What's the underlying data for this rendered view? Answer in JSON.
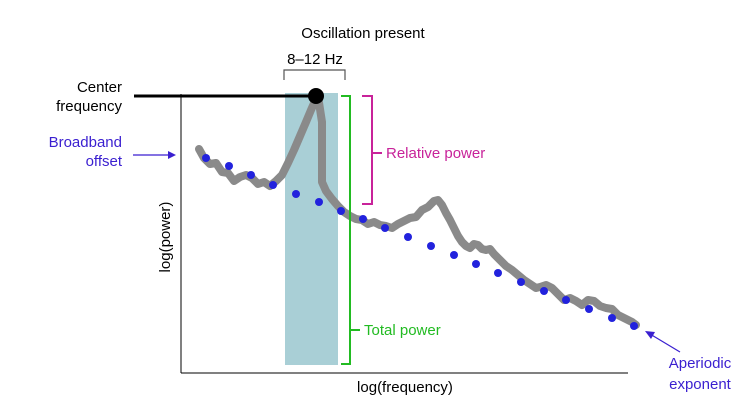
{
  "diagram": {
    "title": "Oscillation present",
    "band_label": "8–12 Hz",
    "center_frequency_label": [
      "Center",
      "frequency"
    ],
    "broadband_offset_label": [
      "Broadband",
      "offset"
    ],
    "relative_power_label": "Relative power",
    "total_power_label": "Total power",
    "aperiodic_exponent_label": [
      "Aperiodic",
      "exponent"
    ],
    "x_axis_label": "log(frequency)",
    "y_axis_label": "log(power)"
  },
  "colors": {
    "spectrum": "#8a8a8a",
    "aperiodic_fit": "#2222dd",
    "band": "#a9cfd6",
    "relative_power": "#c8239a",
    "total_power": "#22bb22",
    "annotation": "#3a1fd0",
    "axis": "#000000"
  }
}
